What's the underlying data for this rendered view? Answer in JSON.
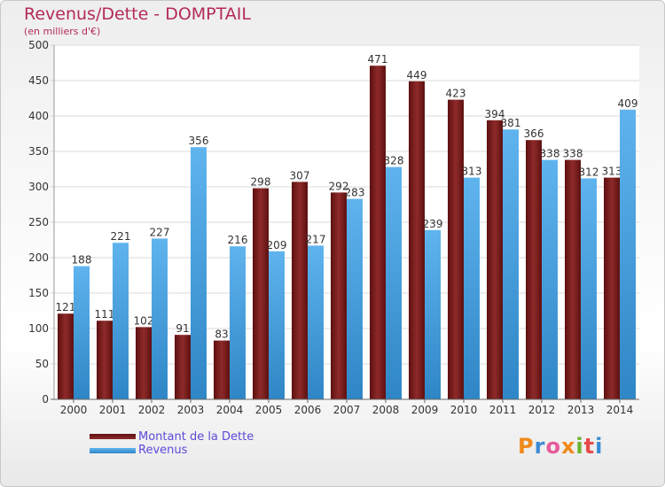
{
  "title": "Revenus/Dette - DOMPTAIL",
  "subtitle": "(en milliers d'€)",
  "brand": "Proxiti",
  "colors": {
    "title": "#b42a5a",
    "debt": "#7a1c1c",
    "revenue": "#4aa8e8",
    "legend_text": "#5a4ad8"
  },
  "chart_data": {
    "type": "bar",
    "title": "Revenus/Dette - DOMPTAIL",
    "subtitle": "(en milliers d'€)",
    "xlabel": "",
    "ylabel": "",
    "ylim": [
      0,
      500
    ],
    "yticks": [
      0,
      50,
      100,
      150,
      200,
      250,
      300,
      350,
      400,
      450,
      500
    ],
    "grid": true,
    "legend": "bottom-left",
    "categories": [
      "2000",
      "2001",
      "2002",
      "2003",
      "2004",
      "2005",
      "2006",
      "2007",
      "2008",
      "2009",
      "2010",
      "2011",
      "2012",
      "2013",
      "2014"
    ],
    "series": [
      {
        "name": "Montant de la Dette",
        "color": "#7a1c1c",
        "values": [
          121,
          111,
          102,
          91,
          83,
          298,
          307,
          292,
          471,
          449,
          423,
          394,
          366,
          338,
          313
        ]
      },
      {
        "name": "Revenus",
        "color": "#4aa8e8",
        "values": [
          188,
          221,
          227,
          356,
          216,
          209,
          217,
          283,
          328,
          239,
          313,
          381,
          338,
          312,
          409
        ]
      }
    ]
  }
}
